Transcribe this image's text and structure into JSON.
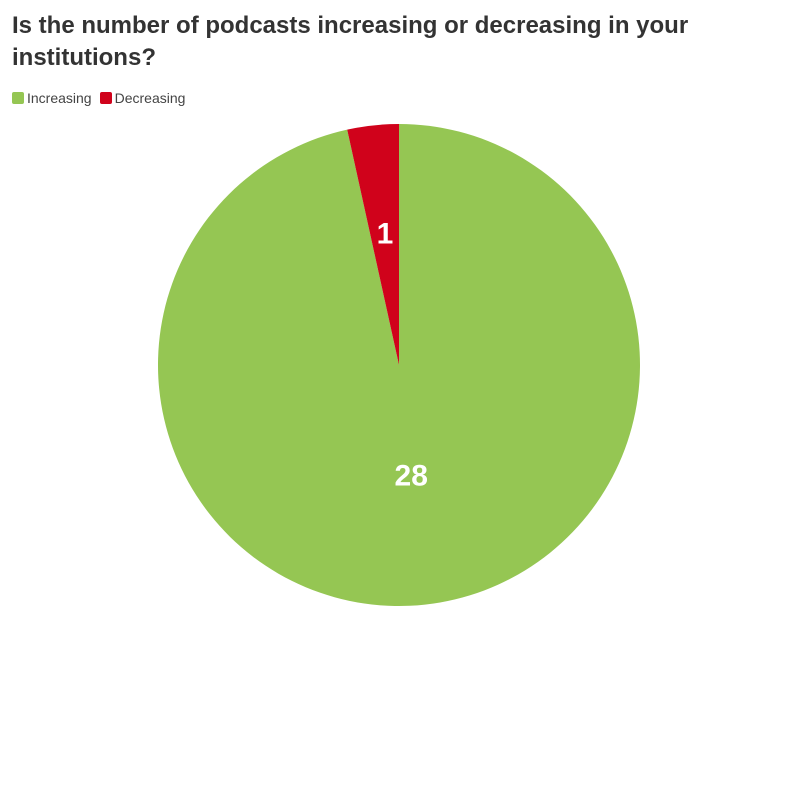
{
  "chart_data": {
    "type": "pie",
    "title": "Is the number of podcasts increasing or decreasing in your institutions?",
    "legend_position": "top-left",
    "categories": [
      "Increasing",
      "Decreasing"
    ],
    "values": [
      28,
      1
    ],
    "colors": [
      "#95c653",
      "#d0021b"
    ],
    "data_labels": [
      "28",
      "1"
    ]
  }
}
